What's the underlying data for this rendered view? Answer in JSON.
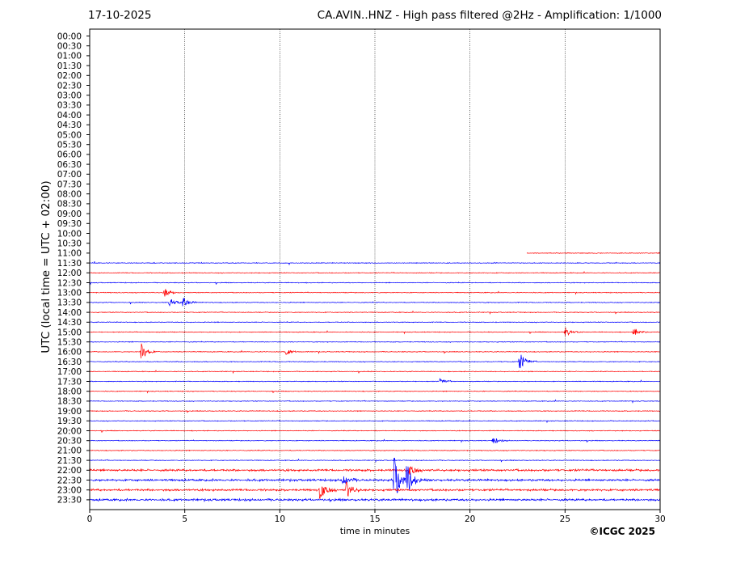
{
  "header": {
    "date": "17-10-2025",
    "title": "CA.AVIN..HNZ - High pass filtered @2Hz - Amplification: 1/1000"
  },
  "footer": {
    "copyright": "©ICGC 2025"
  },
  "colors": {
    "red": "#ff0000",
    "blue": "#0000ff",
    "grid": "#000000"
  },
  "chart_data": {
    "type": "line",
    "xlabel": "time in minutes",
    "ylabel": "UTC (local time = UTC + 02:00)",
    "xlim": [
      0,
      30
    ],
    "xticks": [
      0,
      5,
      10,
      15,
      20,
      25,
      30
    ],
    "grid": "vertical dotted lines at 5, 10, 15, 20, 25",
    "rows": [
      "00:00",
      "00:30",
      "01:00",
      "01:30",
      "02:00",
      "02:30",
      "03:00",
      "03:30",
      "04:00",
      "04:30",
      "05:00",
      "05:30",
      "06:00",
      "06:30",
      "07:00",
      "07:30",
      "08:00",
      "08:30",
      "09:00",
      "09:30",
      "10:00",
      "10:30",
      "11:00",
      "11:30",
      "12:00",
      "12:30",
      "13:00",
      "13:30",
      "14:00",
      "14:30",
      "15:00",
      "15:30",
      "16:00",
      "16:30",
      "17:00",
      "17:30",
      "18:00",
      "18:30",
      "19:00",
      "19:30",
      "20:00",
      "20:30",
      "21:00",
      "21:30",
      "22:00",
      "22:30",
      "23:00",
      "23:30"
    ],
    "row_colors": "alternating red (on the hour) and blue (half hour)",
    "data_start": {
      "row": "11:00",
      "minute": 23
    },
    "events": [
      {
        "row": "13:00",
        "minute": 3.9,
        "amplitude": 0.55
      },
      {
        "row": "13:30",
        "minute": 4.2,
        "amplitude": 0.5
      },
      {
        "row": "13:30",
        "minute": 4.9,
        "amplitude": 0.55
      },
      {
        "row": "15:00",
        "minute": 25.0,
        "amplitude": 0.5
      },
      {
        "row": "15:00",
        "minute": 28.6,
        "amplitude": 0.4
      },
      {
        "row": "16:00",
        "minute": 2.7,
        "amplitude": 1.0
      },
      {
        "row": "16:00",
        "minute": 10.3,
        "amplitude": 0.35
      },
      {
        "row": "16:30",
        "minute": 22.6,
        "amplitude": 1.0
      },
      {
        "row": "17:30",
        "minute": 18.4,
        "amplitude": 0.3
      },
      {
        "row": "20:30",
        "minute": 21.2,
        "amplitude": 0.4
      },
      {
        "row": "22:00",
        "minute": 16.8,
        "amplitude": 0.6
      },
      {
        "row": "22:30",
        "minute": 13.3,
        "amplitude": 0.7
      },
      {
        "row": "22:30",
        "minute": 16.0,
        "amplitude": 2.6
      },
      {
        "row": "22:30",
        "minute": 16.6,
        "amplitude": 2.2
      },
      {
        "row": "23:00",
        "minute": 12.1,
        "amplitude": 1.0
      },
      {
        "row": "23:00",
        "minute": 13.5,
        "amplitude": 0.9
      }
    ]
  }
}
